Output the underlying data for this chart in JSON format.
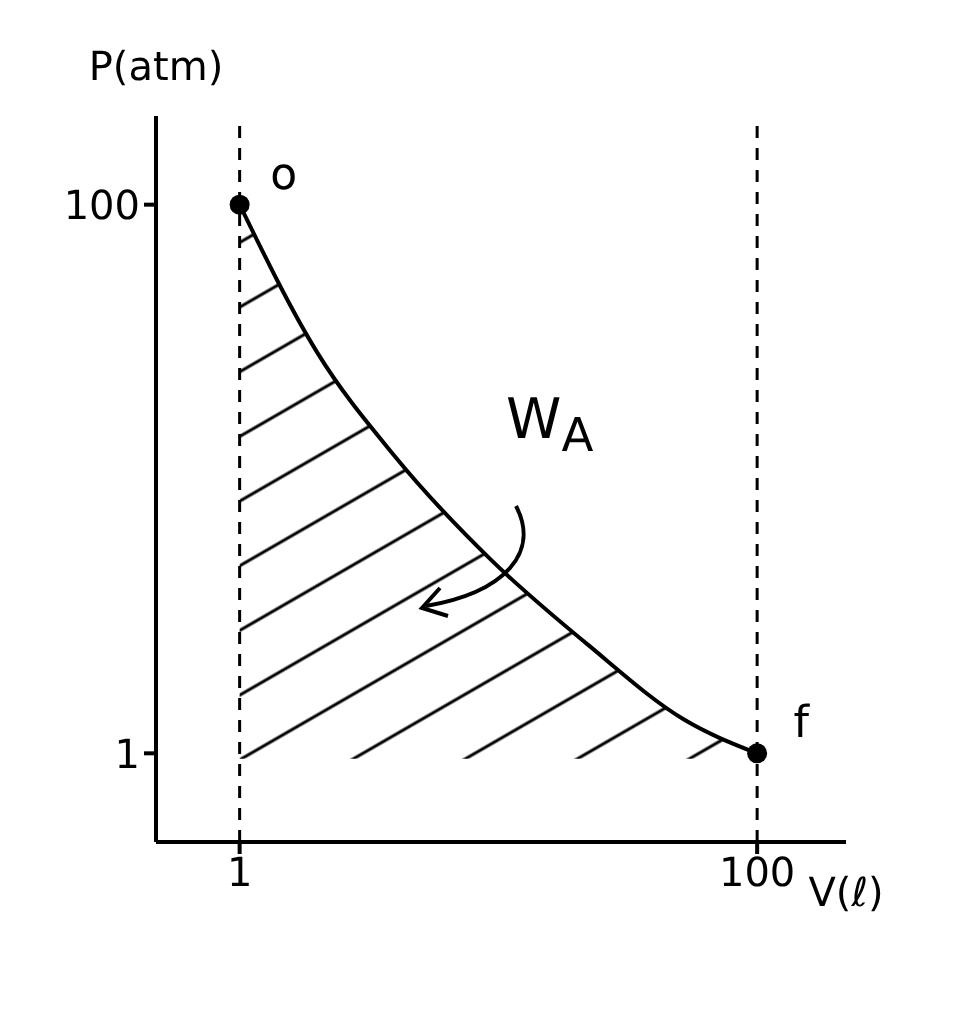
{
  "chart_data": {
    "type": "area",
    "xlabel": "V(ℓ)",
    "ylabel": "P(atm)",
    "xlim": [
      -15,
      117
    ],
    "ylim": [
      -15,
      116
    ],
    "xticks": [
      1,
      100
    ],
    "yticks": [
      1,
      100
    ],
    "series": [
      {
        "color": "#000000",
        "marker": "none",
        "x": [
          1,
          15.8,
          30.6,
          49,
          67.5,
          86,
          100
        ],
        "values": [
          100,
          73.4,
          54.7,
          36,
          20.7,
          7.1,
          1
        ]
      },
      {
        "type": "scatter",
        "color": "#000000",
        "marker": "circle",
        "x": [
          1,
          100
        ],
        "values": [
          100,
          1
        ]
      }
    ],
    "ref_lines": [
      {
        "axis": "x",
        "value": 1,
        "line_style": "dashed"
      },
      {
        "axis": "x",
        "value": 100,
        "line_style": "dashed"
      }
    ],
    "annotations": [
      {
        "text": "o",
        "x": 1,
        "y": 100
      },
      {
        "text": "f",
        "x": 100,
        "y": 1
      },
      "W$_{A}$"
    ]
  }
}
